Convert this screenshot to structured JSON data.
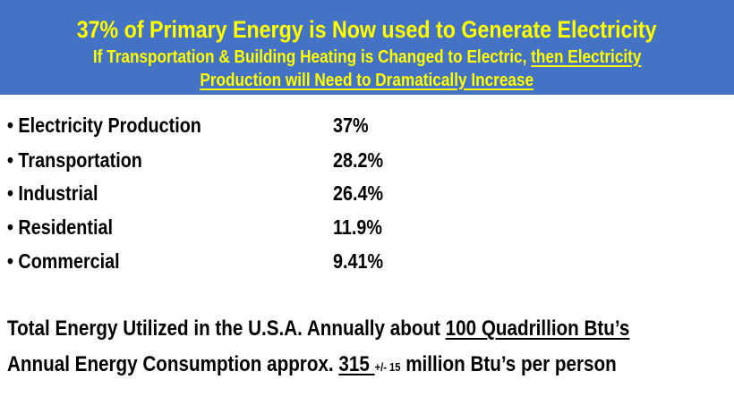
{
  "header": {
    "title": "37% of Primary Energy  is Now used to Generate Electricity",
    "subtitle_plain": "If Transportation & Building Heating is Changed to Electric, ",
    "subtitle_underlined_1": "then Electricity",
    "subtitle_underlined_2": "Production will Need to Dramatically Increase"
  },
  "bullets": [
    {
      "label": "• Electricity Production",
      "value": "37%"
    },
    {
      "label": "• Transportation",
      "value": "28.2%"
    },
    {
      "label": "• Industrial",
      "value": "26.4%"
    },
    {
      "label": "• Residential",
      "value": "11.9%"
    },
    {
      "label": "• Commercial",
      "value": "9.41%"
    }
  ],
  "footer": {
    "line1_text": "Total Energy Utilized in the U.S.A. Annually about ",
    "line1_underlined": "100 Quadrillion Btu’s",
    "line2_text": "Annual Energy Consumption approx. ",
    "line2_underlined": "315 ",
    "line2_small": "+/- 15",
    "line2_end": " million Btu’s per person"
  },
  "colors": {
    "header_bg": "#4472C4",
    "header_text": "#FFFF00"
  }
}
